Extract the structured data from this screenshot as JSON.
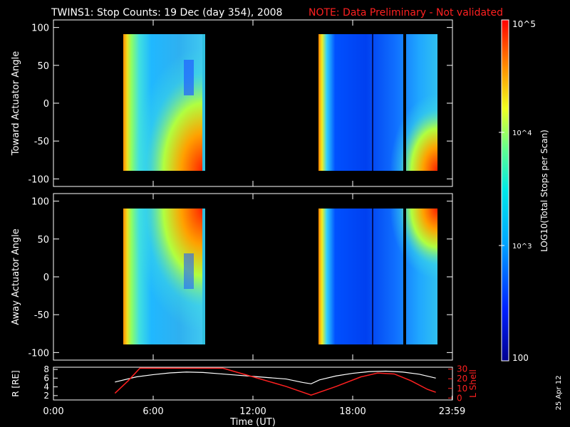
{
  "title": "TWINS1: Stop Counts: 19 Dec (day 354), 2008",
  "note": "NOTE: Data Preliminary - Not validated",
  "side_date": "25 Apr 12",
  "colorbar": {
    "label": "LOG10(Total Stops per Scan)",
    "ticks": [
      "10^5",
      "10^4",
      "10^3",
      "100"
    ]
  },
  "colors": {
    "note": "#ff2020",
    "lshell": "#ff2020",
    "r_trace": "#ffffff"
  },
  "chart_data": [
    {
      "type": "heatmap",
      "name": "toward",
      "ylabel": "Toward Actuator Angle",
      "ylim": [
        -110,
        110
      ],
      "ytick_labels": [
        "100",
        "50",
        "0",
        "-50",
        "-100"
      ],
      "xlim_hours": [
        0,
        24
      ],
      "data_intervals_hours": [
        [
          3.7,
          8.8
        ],
        [
          15.4,
          23.0
        ]
      ],
      "angle_range": [
        -88,
        90
      ]
    },
    {
      "type": "heatmap",
      "name": "away",
      "ylabel": "Away Actuator Angle",
      "ylim": [
        -110,
        110
      ],
      "ytick_labels": [
        "100",
        "50",
        "0",
        "-50",
        "-100"
      ],
      "xlim_hours": [
        0,
        24
      ],
      "data_intervals_hours": [
        [
          3.7,
          8.8
        ],
        [
          15.4,
          23.0
        ]
      ],
      "angle_range": [
        -88,
        90
      ]
    },
    {
      "type": "line",
      "name": "orbit",
      "ylabel_left": "R [RE]",
      "ylabel_right": "L Shell",
      "xlabel": "Time (UT)",
      "x_tick_labels": [
        "0:00",
        "6:00",
        "12:00",
        "18:00",
        "23:59"
      ],
      "left_ytick_labels": [
        "8",
        "6",
        "4",
        "2"
      ],
      "right_ytick_labels": [
        "30",
        "20",
        "10",
        "0"
      ],
      "series": [
        {
          "name": "R",
          "x": [
            3.7,
            5,
            6,
            7,
            8,
            9,
            10,
            11,
            12,
            13,
            14,
            15,
            15.5,
            16,
            17,
            18,
            19,
            20,
            21,
            22,
            23
          ],
          "y": [
            5.1,
            6.3,
            6.8,
            7.2,
            7.4,
            7.3,
            7.0,
            6.7,
            6.4,
            6.1,
            5.8,
            5.0,
            4.7,
            5.6,
            6.5,
            7.1,
            7.5,
            7.6,
            7.4,
            6.9,
            6.0
          ]
        },
        {
          "name": "L Shell",
          "x": [
            3.7,
            4.5,
            5.2,
            10.2,
            12,
            14,
            15.5,
            17,
            18.5,
            19.5,
            20.5,
            21.5,
            22.5,
            23
          ],
          "y": [
            5,
            18,
            31,
            31,
            22,
            12,
            3,
            12,
            22,
            26,
            25,
            18,
            9,
            6
          ]
        }
      ]
    }
  ]
}
